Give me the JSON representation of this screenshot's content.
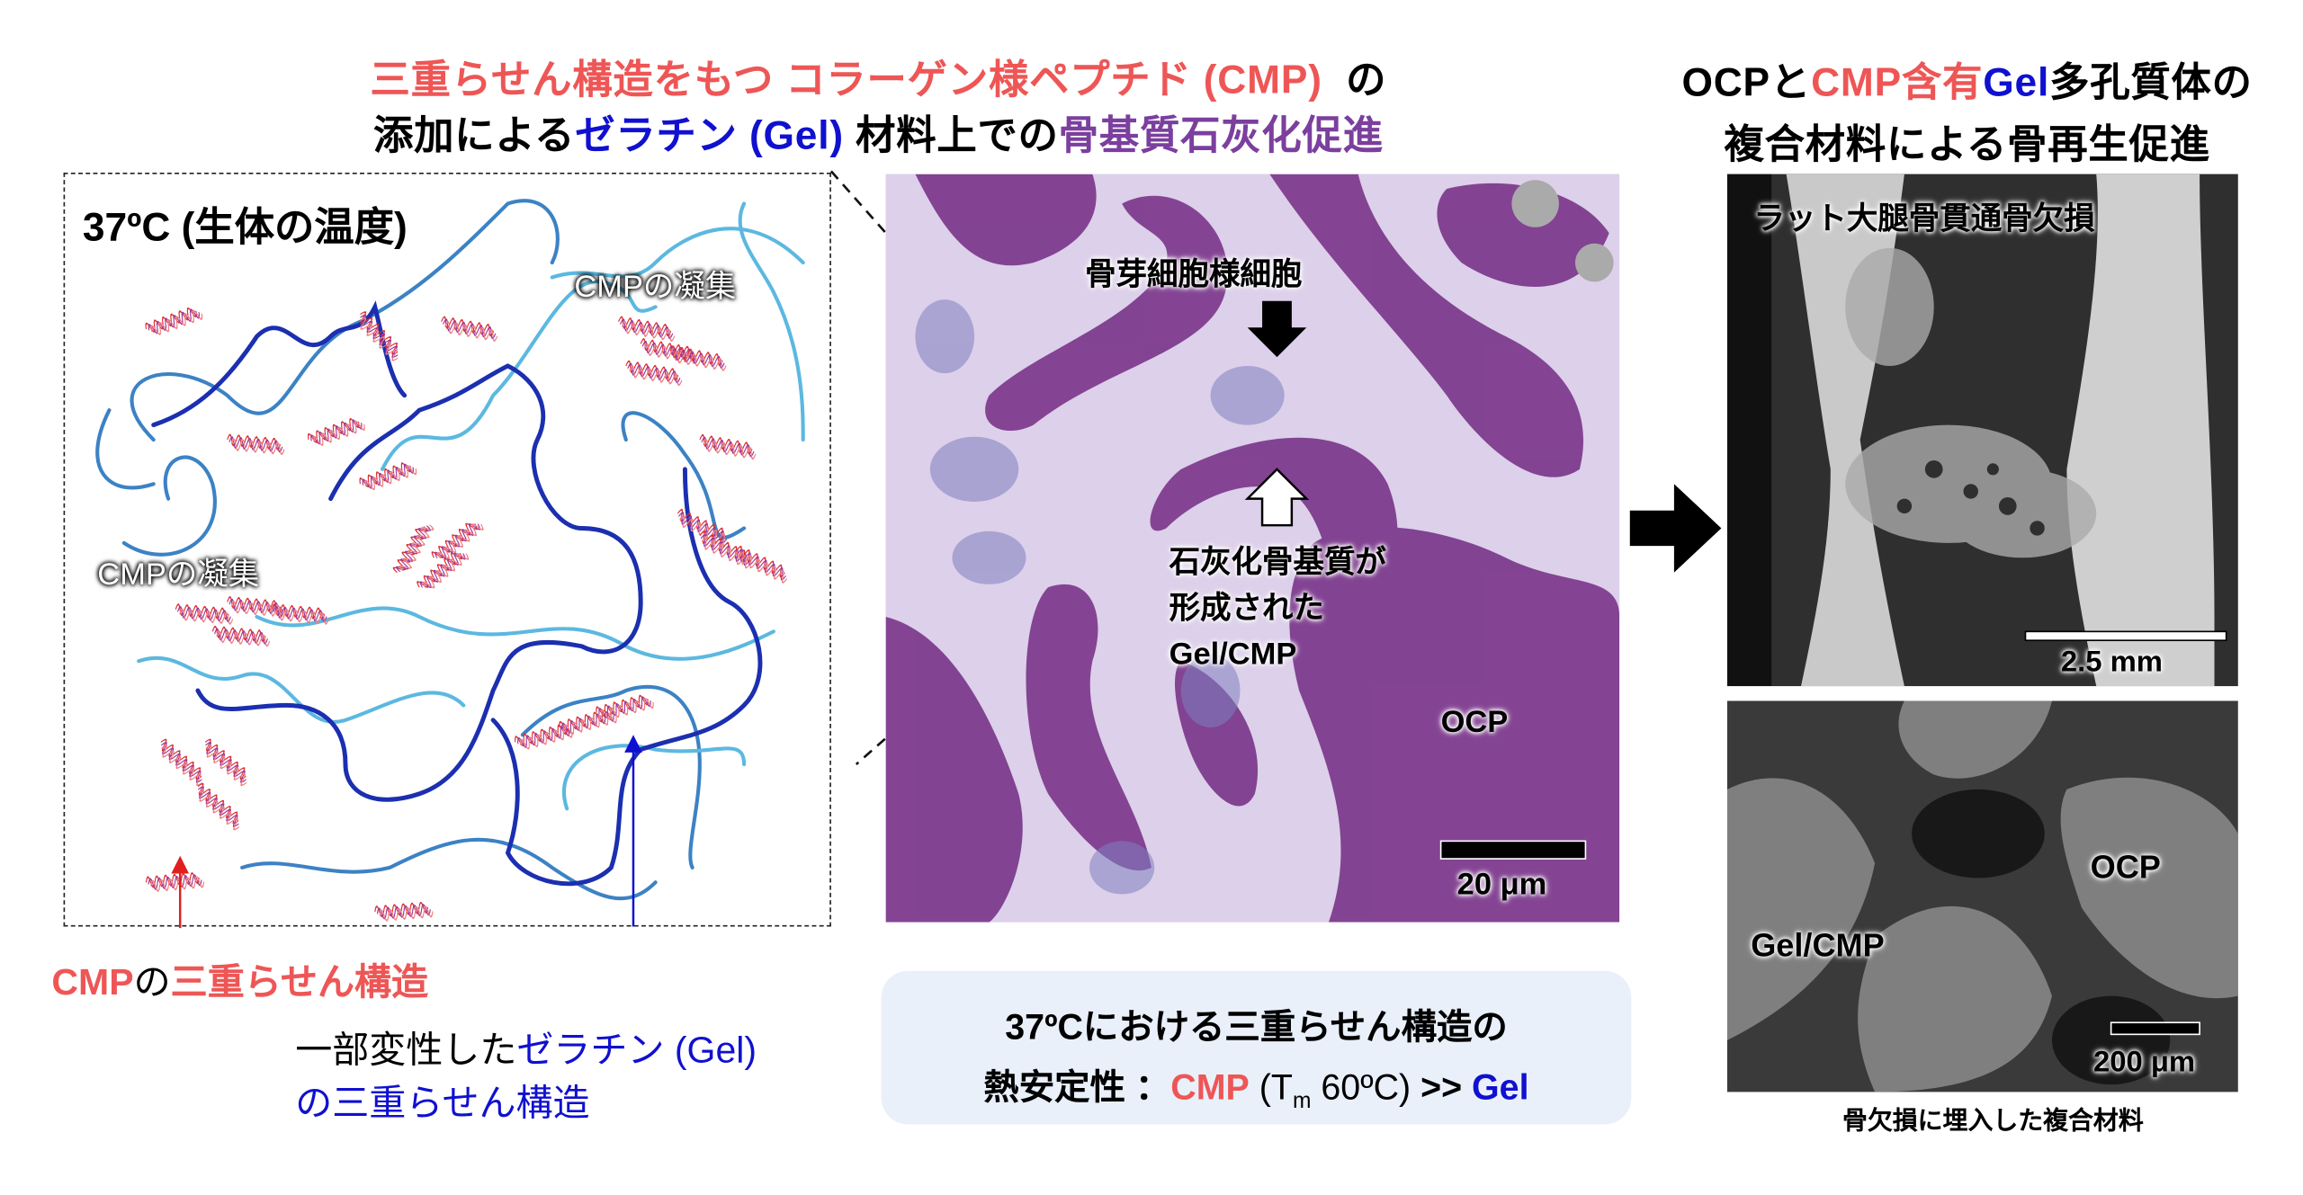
{
  "header": {
    "line1_red": "三重らせん構造をもつ コラーゲン様ペプチド (CMP)",
    "line1_black": "の",
    "line2_black_a": "添加による",
    "line2_blue": "ゼラチン (Gel)",
    "line2_black_b": " 材料上での",
    "line2_purple": "骨基質石灰化促進"
  },
  "right_header": {
    "part1": "OCPと",
    "part2_red": "CMP含有",
    "part3_blue": "Gel",
    "part4": "多孔質体の",
    "line2": "複合材料による骨再生促進"
  },
  "schematic": {
    "temperature_label": "37ºC (生体の温度)",
    "aggregate_label_1": "CMPの凝集",
    "aggregate_label_2": "CMPの凝集",
    "cmp_helix_label_a": "CMP",
    "cmp_helix_label_b": "の",
    "cmp_helix_label_c": "三重らせん構造",
    "gel_label_a": "一部変性した",
    "gel_label_b": "ゼラチン (Gel)",
    "gel_label_c": "の三重らせん構造"
  },
  "micrograph": {
    "osteoblast_label": "骨芽細胞様細胞",
    "matrix_label_1": "石灰化骨基質が",
    "matrix_label_2": "形成された",
    "matrix_label_3": "Gel/CMP",
    "ocp_label": "OCP",
    "scale_bar": "20 μm"
  },
  "info_box": {
    "line1": "37ºCにおける三重らせん構造の",
    "line2_a": "熱安定性 ：",
    "line2_cmp": "CMP",
    "line2_paren_open": " (T",
    "line2_sub": "m",
    "line2_temp": " 60ºC)",
    "line2_gt": " >> ",
    "line2_gel": "Gel",
    "background": "#e9f0fa"
  },
  "ct_image": {
    "label": "ラット大腿骨貫通骨欠損",
    "scale_bar": "2.5 mm"
  },
  "sem_image": {
    "ocp_label": "OCP",
    "gel_cmp_label": "Gel/CMP",
    "scale_bar": "200 μm",
    "caption": "骨欠損に埋入した複合材料"
  },
  "colors": {
    "cmp_red": "#ee5656",
    "gel_blue": "#1010d0",
    "mineral_purple": "#7b3f9e"
  }
}
